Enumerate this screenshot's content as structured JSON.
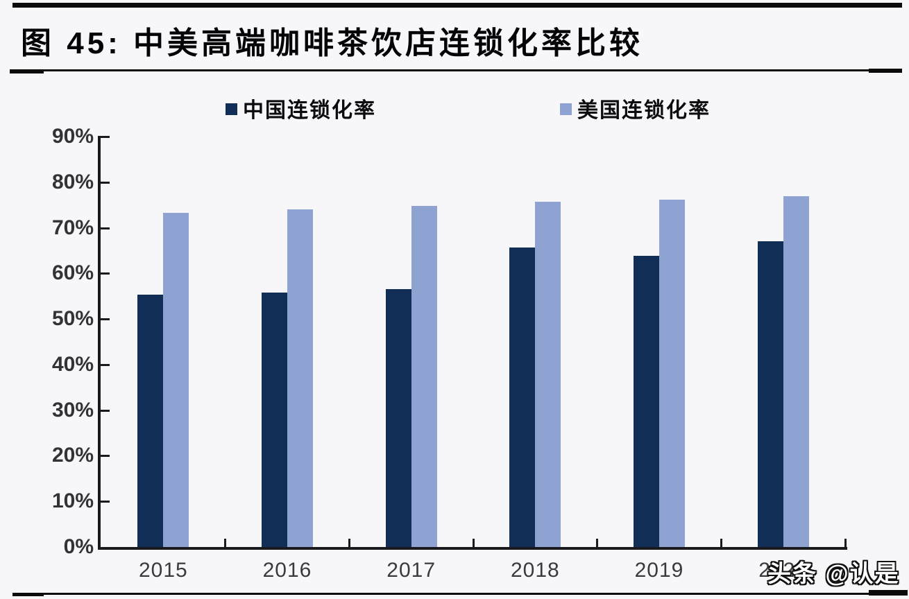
{
  "header": {
    "title": "图 45:  中美高端咖啡茶饮店连锁化率比较"
  },
  "chart_data": {
    "type": "bar",
    "title": "中美高端咖啡茶饮店连锁化率比较",
    "categories": [
      "2015",
      "2016",
      "2017",
      "2018",
      "2019",
      "2020"
    ],
    "series": [
      {
        "name": "中国连锁化率",
        "color": "#112e56",
        "values": [
          55.3,
          55.8,
          56.5,
          65.7,
          63.8,
          67.0
        ]
      },
      {
        "name": "美国连锁化率",
        "color": "#8fa3d3",
        "values": [
          73.3,
          74.0,
          74.8,
          75.7,
          76.1,
          77.0
        ]
      }
    ],
    "xlabel": "",
    "ylabel": "",
    "ylim": [
      0,
      90
    ],
    "ytick_step": 10,
    "ytick_labels": [
      "0%",
      "10%",
      "20%",
      "30%",
      "40%",
      "50%",
      "60%",
      "70%",
      "80%",
      "90%"
    ],
    "grid": false,
    "legend_position": "top"
  },
  "watermark": {
    "text": "头条 @认是"
  }
}
